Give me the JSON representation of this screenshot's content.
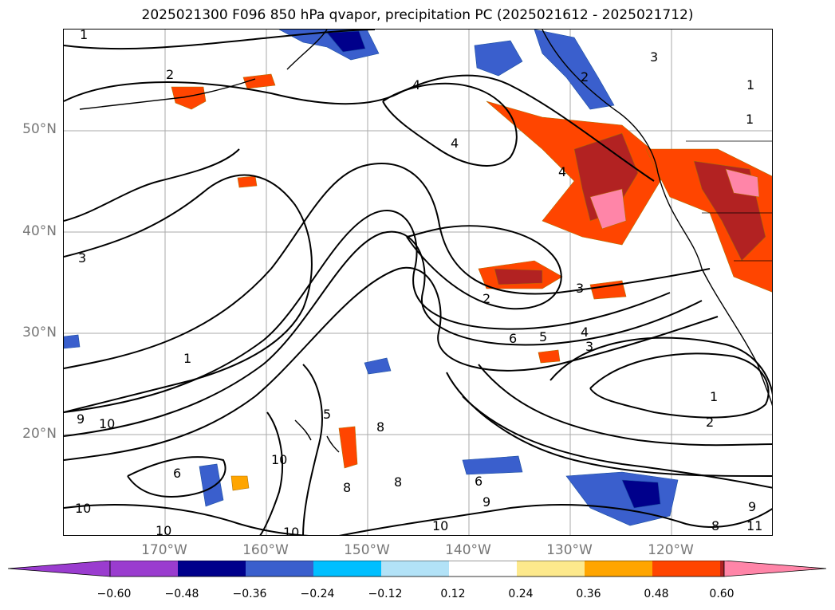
{
  "title": "2025021300 F096 850 hPa qvapor, precipitation PC (2025021612 - 2025021712)",
  "map": {
    "projection": "latitude-longitude",
    "extent": {
      "lon_min": -182,
      "lon_max": -112,
      "lat_min": 10,
      "lat_max": 60
    },
    "gridlines": true,
    "coastlines": true,
    "lat_labels": [
      "50°N",
      "40°N",
      "30°N",
      "20°N"
    ],
    "lon_labels": [
      "170°W",
      "160°W",
      "150°W",
      "140°W",
      "130°W",
      "120°W"
    ],
    "contour_field": "850 hPa qvapor",
    "contour_labels": [
      "1",
      "2",
      "3",
      "4",
      "5",
      "6",
      "8",
      "9",
      "10",
      "11"
    ],
    "fill_field": "precipitation PC",
    "colorbar": {
      "extend": "both",
      "ticks": [
        "−0.60",
        "−0.48",
        "−0.36",
        "−0.24",
        "−0.12",
        "0.12",
        "0.24",
        "0.36",
        "0.48",
        "0.60"
      ],
      "colors": [
        "#9a3ccf",
        "#00008b",
        "#3a5fcd",
        "#00bfff",
        "#b2e2f7",
        "#ffffff",
        "#fde98c",
        "#ffa500",
        "#ff4500",
        "#b22222",
        "#ff85a8"
      ]
    }
  }
}
